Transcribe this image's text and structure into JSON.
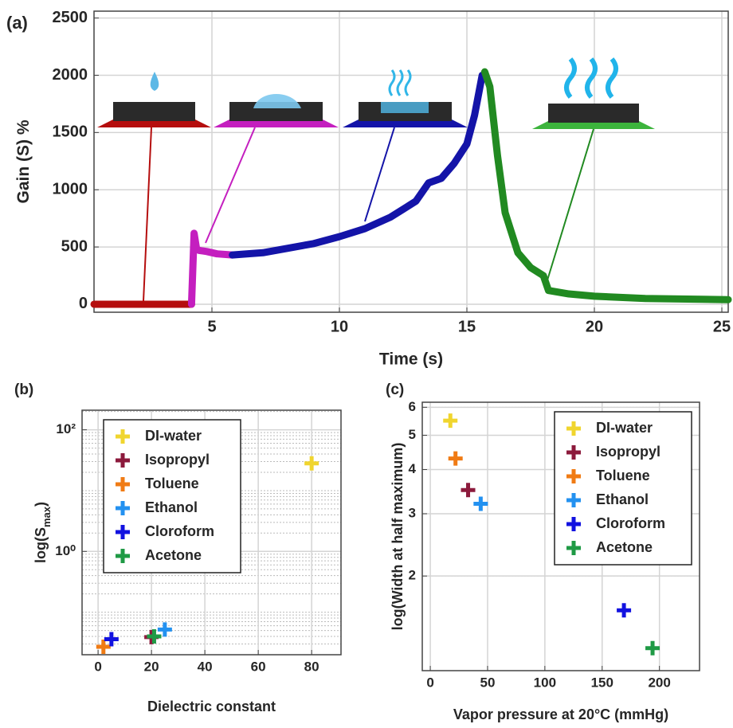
{
  "chart_data": [
    {
      "type": "line",
      "panel_label": "(a)",
      "xlabel": "Time (s)",
      "ylabel": [
        "Gain (S) %"
      ],
      "xlim": [
        0.375,
        25.25
      ],
      "ylim": [
        -70,
        2560
      ],
      "xticks": [
        5,
        10,
        15,
        20,
        25
      ],
      "yticks": [
        0,
        500,
        1000,
        1500,
        2000,
        2500
      ],
      "grid": true,
      "series": [
        {
          "color": "#b50e0e",
          "x": [
            0.375,
            1,
            2,
            3,
            4,
            4.2
          ],
          "values": [
            0,
            0,
            0,
            0,
            0,
            0
          ]
        },
        {
          "color": "#c41fbf",
          "x": [
            4.2,
            4.3,
            4.4,
            4.5,
            4.8,
            5.2,
            5.8
          ],
          "values": [
            0,
            620,
            480,
            470,
            460,
            440,
            430
          ]
        },
        {
          "color": "#1414a8",
          "x": [
            5.8,
            7,
            8,
            9,
            10,
            11,
            12,
            13,
            13.5,
            14,
            14.5,
            15,
            15.3,
            15.6
          ],
          "values": [
            430,
            450,
            490,
            530,
            590,
            660,
            760,
            900,
            1060,
            1100,
            1230,
            1400,
            1650,
            2000
          ]
        },
        {
          "color": "#218a21",
          "x": [
            15.7,
            15.9,
            16.2,
            16.5,
            17,
            17.5,
            18,
            18.2,
            19,
            20,
            22,
            25.25
          ],
          "values": [
            2030,
            1900,
            1300,
            800,
            450,
            320,
            250,
            120,
            90,
            70,
            50,
            40
          ]
        }
      ]
    },
    {
      "type": "scatter",
      "panel_label": "(b)",
      "xlabel": "Dielectric constant",
      "ylabel": [
        "log(S",
        "max",
        ")"
      ],
      "ylog": true,
      "xlim": [
        -6,
        91
      ],
      "ylim": [
        0.02,
        210
      ],
      "xticks": [
        0,
        20,
        40,
        60,
        80
      ],
      "yticks": [
        {
          "value": 1,
          "label": "10⁰"
        },
        {
          "value": 100,
          "label": "10²"
        }
      ],
      "grid": true,
      "legend": "upper left",
      "series": [
        {
          "name": "DI-water",
          "color": "#f0d52e",
          "x": [
            80
          ],
          "values": [
            28
          ]
        },
        {
          "name": "Isopropyl",
          "color": "#8c1a3c",
          "x": [
            20
          ],
          "values": [
            0.039
          ]
        },
        {
          "name": "Toluene",
          "color": "#f07b14",
          "x": [
            2
          ],
          "values": [
            0.027
          ]
        },
        {
          "name": "Ethanol",
          "color": "#2391f0",
          "x": [
            25
          ],
          "values": [
            0.052
          ]
        },
        {
          "name": "Cloroform",
          "color": "#1212e0",
          "x": [
            5
          ],
          "values": [
            0.036
          ]
        },
        {
          "name": "Acetone",
          "color": "#1f9a45",
          "x": [
            21
          ],
          "values": [
            0.04
          ]
        }
      ]
    },
    {
      "type": "scatter",
      "panel_label": "(c)",
      "xlabel": "Vapor pressure at 20°C (mmHg)",
      "ylabel": [
        "log(Width at half maximum)"
      ],
      "ylog": true,
      "xlim": [
        -7,
        235
      ],
      "ylim": [
        1.08,
        6.2
      ],
      "xticks": [
        0,
        50,
        100,
        150,
        200
      ],
      "yticks": [
        2,
        3,
        4,
        5,
        6
      ],
      "grid": true,
      "legend": "upper right",
      "series": [
        {
          "name": "DI-water",
          "color": "#f0d52e",
          "x": [
            17.5
          ],
          "values": [
            5.5
          ]
        },
        {
          "name": "Isopropyl",
          "color": "#8c1a3c",
          "x": [
            33
          ],
          "values": [
            3.5
          ]
        },
        {
          "name": "Toluene",
          "color": "#f07b14",
          "x": [
            22
          ],
          "values": [
            4.3
          ]
        },
        {
          "name": "Ethanol",
          "color": "#2391f0",
          "x": [
            44
          ],
          "values": [
            3.2
          ]
        },
        {
          "name": "Cloroform",
          "color": "#1212e0",
          "x": [
            169
          ],
          "values": [
            1.6
          ]
        },
        {
          "name": "Acetone",
          "color": "#1f9a45",
          "x": [
            194
          ],
          "values": [
            1.25
          ]
        }
      ]
    }
  ]
}
